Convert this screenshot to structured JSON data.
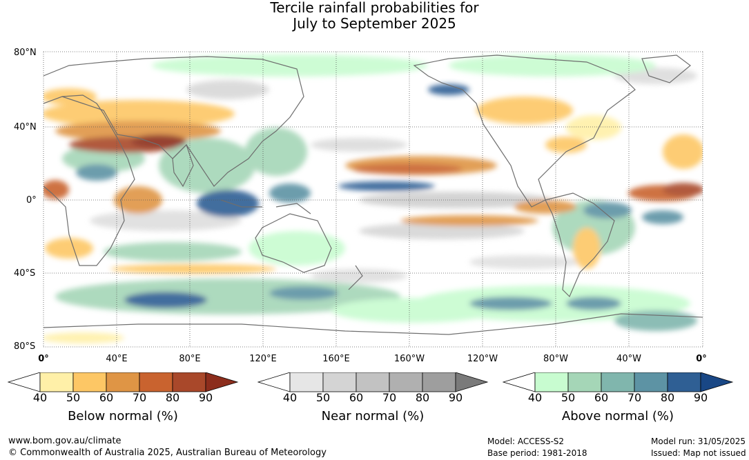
{
  "title": {
    "line1": "Tercile rainfall probabilities for",
    "line2": "July to September 2025"
  },
  "map": {
    "lat_labels": [
      "80°N",
      "40°N",
      "0°",
      "40°S",
      "80°S"
    ],
    "lon_labels": [
      "0°",
      "40°E",
      "80°E",
      "120°E",
      "160°E",
      "160°W",
      "120°W",
      "80°W",
      "40°W",
      "0°"
    ],
    "gridlines": "dotted",
    "ocean_color": "#ffffff",
    "coastline_color": "#6e6e6e"
  },
  "colorbars": [
    {
      "name": "Below normal (%)",
      "ticks": [
        "40",
        "50",
        "60",
        "70",
        "80",
        "90"
      ],
      "colors": [
        "#ffffff",
        "#fff0a8",
        "#fdc765",
        "#df9545",
        "#c9632f",
        "#a9482a",
        "#8c2d1c"
      ]
    },
    {
      "name": "Near normal (%)",
      "ticks": [
        "40",
        "50",
        "60",
        "70",
        "80",
        "90"
      ],
      "colors": [
        "#ffffff",
        "#e6e6e6",
        "#d4d4d4",
        "#c2c2c2",
        "#b0b0b0",
        "#9e9e9e",
        "#7a7a7a"
      ]
    },
    {
      "name": "Above normal (%)",
      "ticks": [
        "40",
        "50",
        "60",
        "70",
        "80",
        "90"
      ],
      "colors": [
        "#ffffff",
        "#c8fcd0",
        "#a5d6b7",
        "#80b6ad",
        "#5d93a4",
        "#2f5f94",
        "#194785"
      ]
    }
  ],
  "footer": {
    "url": "www.bom.gov.au/climate",
    "copyright": "© Commonwealth of Australia 2025, Australian Bureau of Meteorology",
    "model": "Model: ACCESS-S2",
    "base_period": "Base period: 1981-2018",
    "model_run": "Model run: 31/05/2025",
    "issued": "Issued: Map not issued"
  }
}
